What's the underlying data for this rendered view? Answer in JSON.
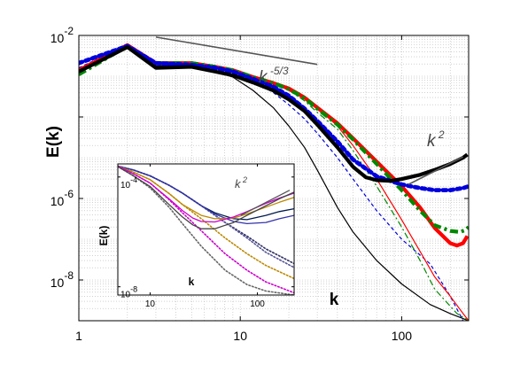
{
  "chart_data": [
    {
      "type": "line",
      "scale": "log-log",
      "xlabel": "k",
      "ylabel": "E(k)",
      "xlim": [
        1,
        260
      ],
      "ylim": [
        1e-09,
        0.01
      ],
      "grid": "dotted",
      "x_ticks": [
        {
          "value": 1,
          "label": "1"
        },
        {
          "value": 10,
          "label": "10"
        },
        {
          "value": 100,
          "label": "100"
        }
      ],
      "y_ticks": [
        {
          "value": 0.01,
          "base": "10",
          "exp": "-2"
        },
        {
          "value": 0.0001,
          "base": "",
          "exp": ""
        },
        {
          "value": 1e-06,
          "base": "10",
          "exp": "-6"
        },
        {
          "value": 1e-08,
          "base": "10",
          "exp": "-8"
        }
      ],
      "reference_lines": [
        {
          "base": "k",
          "exp": "-5/3",
          "x": [
            3,
            30
          ],
          "y": [
            0.0091,
            0.00195
          ]
        },
        {
          "base": "k",
          "exp": "2",
          "x": [
            110,
            240
          ],
          "y": [
            2.2e-06,
            1.05e-05
          ]
        }
      ],
      "series": [
        {
          "color": "#000000",
          "style": "solid-thin",
          "x": [
            1,
            2,
            3,
            5,
            7,
            9,
            12,
            16,
            20,
            25,
            30,
            40,
            50,
            70,
            100,
            150,
            200,
            260
          ],
          "y": [
            0.0014,
            0.0055,
            0.0018,
            0.0019,
            0.0013,
            0.00095,
            0.00045,
            0.00017,
            6e-05,
            1.8e-05,
            5e-06,
            6e-07,
            1.5e-07,
            3e-08,
            8e-09,
            2.5e-09,
            1.5e-09,
            1e-09
          ]
        },
        {
          "color": "#0000dd",
          "style": "dashed-thin",
          "x": [
            1,
            2,
            3,
            5,
            7,
            9,
            12,
            16,
            20,
            25,
            30,
            40,
            50,
            70,
            100,
            150,
            200,
            240
          ],
          "y": [
            0.0016,
            0.006,
            0.0022,
            0.0021,
            0.0016,
            0.0013,
            0.00075,
            0.0004,
            0.0002,
            9e-05,
            4e-05,
            1e-05,
            3e-06,
            5e-07,
            1e-07,
            2.5e-08,
            4e-09,
            1e-09
          ]
        },
        {
          "color": "#008800",
          "style": "dashdot-thin",
          "x": [
            1,
            2,
            3,
            5,
            7,
            9,
            12,
            16,
            20,
            25,
            30,
            40,
            50,
            70,
            100,
            130,
            160,
            220,
            260
          ],
          "y": [
            0.0012,
            0.0055,
            0.0021,
            0.0021,
            0.0017,
            0.0014,
            0.00095,
            0.00065,
            0.00045,
            0.00025,
            0.00013,
            5e-05,
            1.5e-05,
            2e-06,
            2e-07,
            3e-08,
            6e-09,
            1.5e-09,
            1e-09
          ]
        },
        {
          "color": "#ff0000",
          "style": "solid-thin",
          "x": [
            1,
            2,
            3,
            5,
            7,
            9,
            12,
            16,
            20,
            25,
            30,
            40,
            50,
            70,
            100,
            130,
            160,
            200,
            240,
            260
          ],
          "y": [
            0.0014,
            0.0058,
            0.0021,
            0.0021,
            0.0017,
            0.0014,
            0.00095,
            0.00068,
            0.0005,
            0.0003,
            0.00017,
            6e-05,
            2e-05,
            3e-06,
            3e-07,
            5e-08,
            1.2e-08,
            4e-09,
            1.5e-09,
            1e-09
          ]
        },
        {
          "color": "#ff0000",
          "style": "solid-thick",
          "x": [
            1,
            2,
            3,
            5,
            7,
            9,
            12,
            16,
            20,
            25,
            30,
            40,
            50,
            70,
            100,
            130,
            160,
            180,
            200,
            220,
            240,
            255
          ],
          "y": [
            0.0014,
            0.0058,
            0.0021,
            0.0021,
            0.0017,
            0.0014,
            0.00095,
            0.00068,
            0.0005,
            0.0003,
            0.00017,
            7e-05,
            3e-05,
            8e-06,
            2e-06,
            6e-07,
            1.9e-07,
            1.2e-07,
            8e-08,
            7e-08,
            8e-08,
            1.2e-07
          ]
        },
        {
          "color": "#008800",
          "style": "dashdot-thick",
          "x": [
            1,
            2,
            3,
            5,
            7,
            9,
            12,
            16,
            20,
            25,
            30,
            40,
            50,
            70,
            100,
            130,
            160,
            200,
            230,
            250,
            260
          ],
          "y": [
            0.0011,
            0.0055,
            0.0021,
            0.0021,
            0.0017,
            0.0014,
            0.00095,
            0.00068,
            0.00048,
            0.00029,
            0.00016,
            6.5e-05,
            2.8e-05,
            7e-06,
            1.6e-06,
            5e-07,
            2.2e-07,
            1.6e-07,
            1.5e-07,
            1.7e-07,
            2e-07
          ]
        },
        {
          "color": "#0000dd",
          "style": "dotted-thick",
          "x": [
            1,
            2,
            3,
            5,
            7,
            9,
            12,
            16,
            20,
            25,
            30,
            40,
            50,
            70,
            100,
            130,
            160,
            200,
            240,
            260
          ],
          "y": [
            0.0021,
            0.0055,
            0.0021,
            0.0019,
            0.0016,
            0.0013,
            0.00085,
            0.00055,
            0.00033,
            0.00016,
            8e-05,
            2.5e-05,
            9e-06,
            3.5e-06,
            2.2e-06,
            1.8e-06,
            1.6e-06,
            1.6e-06,
            1.8e-06,
            2e-06
          ]
        },
        {
          "color": "#000000",
          "style": "solid-thick",
          "x": [
            1,
            2,
            3,
            5,
            7,
            9,
            12,
            16,
            20,
            25,
            30,
            40,
            50,
            60,
            70,
            85,
            100,
            130,
            160,
            200,
            240,
            255
          ],
          "y": [
            0.0013,
            0.0052,
            0.0016,
            0.0017,
            0.0013,
            0.00105,
            0.0007,
            0.00045,
            0.00027,
            0.00014,
            6.5e-05,
            1.8e-05,
            6e-06,
            3.3e-06,
            2.8e-06,
            2.7e-06,
            3e-06,
            3.8e-06,
            5e-06,
            7e-06,
            1e-05,
            1.2e-05
          ]
        }
      ]
    },
    {
      "type": "line",
      "scale": "log-log",
      "xlabel": "k",
      "ylabel": "E(k)",
      "xlim": [
        5,
        220
      ],
      "ylim": [
        5e-09,
        0.0003
      ],
      "x_ticks": [
        {
          "value": 10,
          "label": "10"
        },
        {
          "value": 100,
          "label": "100"
        }
      ],
      "y_ticks": [
        {
          "value": 0.0001,
          "base": "10",
          "exp": "-4"
        },
        {
          "value": 1e-08,
          "base": "10",
          "exp": "-8"
        }
      ],
      "reference_lines": [
        {
          "base": "k",
          "exp": "2",
          "x": [
            70,
            200
          ],
          "y": [
            4e-06,
            3.3e-05
          ]
        }
      ],
      "series": [
        {
          "color": "#333366",
          "style": "dotted",
          "x": [
            5,
            7,
            10,
            15,
            20,
            30,
            50,
            80,
            120,
            220
          ],
          "y": [
            0.00025,
            0.00018,
            0.00011,
            5e-05,
            2.6e-05,
            9e-06,
            2.2e-06,
            7e-07,
            2.4e-07,
            7e-08
          ]
        },
        {
          "color": "#555599",
          "style": "dotted",
          "x": [
            5,
            7,
            10,
            15,
            20,
            30,
            50,
            80,
            120,
            220
          ],
          "y": [
            0.00025,
            0.00018,
            0.00011,
            5e-05,
            2.6e-05,
            9e-06,
            2.2e-06,
            6e-07,
            1.8e-07,
            5e-08
          ]
        },
        {
          "color": "#bb8800",
          "style": "dotted",
          "x": [
            5,
            7,
            10,
            15,
            20,
            30,
            50,
            80,
            120,
            220
          ],
          "y": [
            0.00025,
            0.00015,
            8e-05,
            2.5e-05,
            1e-05,
            3e-06,
            6e-07,
            1.6e-07,
            6e-08,
            2e-08
          ]
        },
        {
          "color": "#cc00cc",
          "style": "dotted",
          "x": [
            5,
            7,
            10,
            15,
            20,
            30,
            50,
            80,
            120,
            220
          ],
          "y": [
            0.00025,
            0.00013,
            6e-05,
            1.5e-05,
            5e-06,
            1.1e-06,
            1.6e-07,
            4e-08,
            1.5e-08,
            6e-09
          ]
        },
        {
          "color": "#666666",
          "style": "dotted",
          "x": [
            5,
            7,
            10,
            15,
            20,
            30,
            50,
            80,
            120,
            220
          ],
          "y": [
            0.00024,
            0.00011,
            4e-05,
            8e-06,
            2e-06,
            3e-07,
            4e-08,
            1.2e-08,
            7e-09,
            5e-09
          ]
        },
        {
          "color": "#001a4d",
          "style": "solid",
          "x": [
            5,
            7,
            10,
            15,
            20,
            30,
            40,
            60,
            80,
            120,
            160,
            220
          ],
          "y": [
            0.00025,
            0.00018,
            0.00011,
            5e-05,
            2.6e-05,
            9e-06,
            5e-06,
            3e-06,
            2.8e-06,
            4e-06,
            5.5e-06,
            7e-06
          ]
        },
        {
          "color": "#3333aa",
          "style": "solid",
          "x": [
            5,
            7,
            10,
            15,
            20,
            30,
            40,
            60,
            80,
            120,
            160,
            220
          ],
          "y": [
            0.00025,
            0.00018,
            0.00011,
            5e-05,
            2.6e-05,
            9e-06,
            4.5e-06,
            2.4e-06,
            2e-06,
            2.2e-06,
            3e-06,
            4e-06
          ]
        },
        {
          "color": "#bb8800",
          "style": "solid",
          "x": [
            5,
            7,
            10,
            15,
            20,
            25,
            30,
            40,
            60,
            80,
            120,
            160,
            220
          ],
          "y": [
            0.00025,
            0.00015,
            8e-05,
            2.5e-05,
            1e-05,
            6e-06,
            4e-06,
            3e-06,
            3.2e-06,
            4.5e-06,
            8e-06,
            1.2e-05,
            1.8e-05
          ]
        },
        {
          "color": "#cc00cc",
          "style": "solid",
          "x": [
            5,
            7,
            10,
            15,
            20,
            25,
            30,
            40,
            60,
            80,
            120,
            160,
            220
          ],
          "y": [
            0.00025,
            0.00013,
            6e-05,
            1.6e-05,
            6e-06,
            3.2e-06,
            2.4e-06,
            2.3e-06,
            3.5e-06,
            5.5e-06,
            1.1e-05,
            1.7e-05,
            2.6e-05
          ]
        },
        {
          "color": "#444444",
          "style": "solid",
          "x": [
            5,
            7,
            10,
            15,
            20,
            25,
            30,
            40,
            60,
            80,
            120,
            160,
            220
          ],
          "y": [
            0.00024,
            0.00011,
            4.5e-05,
            1e-05,
            3.5e-06,
            1.8e-06,
            1.3e-06,
            1.3e-06,
            2.2e-06,
            4e-06,
            9e-06,
            1.6e-05,
            2.8e-05
          ]
        }
      ]
    }
  ]
}
